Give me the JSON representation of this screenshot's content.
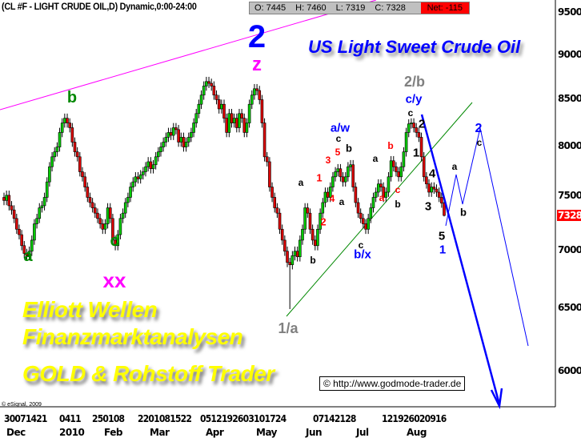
{
  "header": {
    "title": "(CL #F - LIGHT CRUDE OIL,D) Dynamic,0:00-24:00",
    "open": "O: 7445",
    "high": "H: 7460",
    "low": "L: 7319",
    "close": "C: 7328",
    "net": "Net: -115"
  },
  "headline": "US Light Sweet Crude Oil",
  "promo": {
    "line1": "Elliott Wellen",
    "line2": "Finanzmarktanalysen",
    "line3": "GOLD & Rohstoff Trader"
  },
  "copyright": "© http://www.godmode-trader.de",
  "esignal": "© eSignal, 2009",
  "colors": {
    "up": "#00cc00",
    "down": "#dd0000",
    "trend_magenta": "#ff00ff",
    "trend_green": "#008800",
    "projection": "#0000ff",
    "last_price_bg": "#ff0000"
  },
  "chart_data": {
    "type": "candlestick",
    "y_scale": "log",
    "ylim": [
      5700,
      9700
    ],
    "y_ticks": [
      "9500",
      "9000",
      "8500",
      "8000",
      "7500",
      "7000",
      "6500",
      "6000"
    ],
    "last_price": "7328",
    "x_tick_groups": [
      "30071421",
      "0411",
      "250108",
      "2201081522",
      "0512192603101724",
      "07142128",
      "121926020916"
    ],
    "x_months": [
      "Dec",
      "2010",
      "Feb",
      "Mar",
      "Apr",
      "May",
      "Jun",
      "Jul",
      "Aug"
    ],
    "last_bar": {
      "open": 7445,
      "high": 7460,
      "low": 7319,
      "close": 7328
    },
    "closes": [
      7470,
      7520,
      7420,
      7380,
      7300,
      7200,
      7150,
      7050,
      6980,
      6960,
      7000,
      7100,
      7250,
      7300,
      7400,
      7420,
      7500,
      7650,
      7800,
      7900,
      7950,
      8000,
      8150,
      8250,
      8300,
      8250,
      8200,
      8050,
      7950,
      7900,
      7750,
      7700,
      7600,
      7500,
      7450,
      7400,
      7350,
      7300,
      7250,
      7200,
      7250,
      7400,
      7300,
      7100,
      7050,
      7150,
      7300,
      7350,
      7450,
      7500,
      7600,
      7650,
      7700,
      7680,
      7720,
      7750,
      7800,
      7850,
      7780,
      7820,
      7900,
      7950,
      8000,
      8050,
      8100,
      8150,
      8120,
      8200,
      8180,
      8050,
      8100,
      8000,
      8050,
      8100,
      8150,
      8250,
      8350,
      8450,
      8550,
      8650,
      8700,
      8680,
      8650,
      8550,
      8500,
      8400,
      8450,
      8300,
      8150,
      8350,
      8250,
      8300,
      8200,
      8350,
      8300,
      8150,
      8250,
      8450,
      8550,
      8620,
      8600,
      8500,
      8250,
      7900,
      7850,
      7600,
      7500,
      7400,
      7350,
      7200,
      7100,
      7000,
      6900,
      6880,
      6960,
      7000,
      6950,
      7100,
      7200,
      7400,
      7350,
      7200,
      7100,
      7050,
      7200,
      7350,
      7450,
      7550,
      7500,
      7600,
      7700,
      7750,
      7780,
      7700,
      7650,
      7700,
      7800,
      7820,
      7600,
      7450,
      7350,
      7300,
      7250,
      7200,
      7300,
      7400,
      7500,
      7550,
      7630,
      7600,
      7500,
      7550,
      7700,
      7860,
      7800,
      7750,
      7700,
      7800,
      7950,
      8150,
      8240,
      8250,
      8200,
      8150,
      8100,
      7900,
      7700,
      7630,
      7550,
      7600,
      7580,
      7550,
      7500,
      7445,
      7328
    ],
    "annotations": [
      {
        "text": "2",
        "color": "#0000ff"
      },
      {
        "text": "z",
        "color": "#ff00ff"
      },
      {
        "text": "b",
        "color": "#008800"
      },
      {
        "text": "a",
        "color": "#008800"
      },
      {
        "text": "c",
        "color": "#008800"
      },
      {
        "text": "xx",
        "color": "#ff00ff"
      },
      {
        "text": "2/b",
        "color": "#808080"
      },
      {
        "text": "c/y",
        "color": "#0000ff"
      },
      {
        "text": "1/a",
        "color": "#808080"
      },
      {
        "text": "b/x",
        "color": "#0000ff"
      },
      {
        "text": "a/w",
        "color": "#0000ff"
      },
      {
        "text": "c",
        "color": "#000000"
      },
      {
        "text": "b",
        "color": "#000000"
      },
      {
        "text": "3",
        "color": "#ff0000"
      },
      {
        "text": "5",
        "color": "#ff0000"
      },
      {
        "text": "1",
        "color": "#ff0000"
      },
      {
        "text": "a",
        "color": "#000000"
      },
      {
        "text": "4",
        "color": "#ff0000"
      },
      {
        "text": "a",
        "color": "#000000"
      },
      {
        "text": "2",
        "color": "#ff0000"
      },
      {
        "text": "b",
        "color": "#000000"
      },
      {
        "text": "c",
        "color": "#000000"
      },
      {
        "text": "a",
        "color": "#000000"
      },
      {
        "text": "b",
        "color": "#ff0000"
      },
      {
        "text": "a",
        "color": "#ff0000"
      },
      {
        "text": "c",
        "color": "#ff0000"
      },
      {
        "text": "b",
        "color": "#000000"
      },
      {
        "text": "c",
        "color": "#000000"
      },
      {
        "text": "2",
        "color": "#000000"
      },
      {
        "text": "1",
        "color": "#000000"
      },
      {
        "text": "4",
        "color": "#000000"
      },
      {
        "text": "3",
        "color": "#000000"
      },
      {
        "text": "5",
        "color": "#000000"
      },
      {
        "text": "1",
        "color": "#0000ff"
      },
      {
        "text": "a",
        "color": "#000000"
      },
      {
        "text": "b",
        "color": "#000000"
      },
      {
        "text": "2",
        "color": "#0000ff"
      },
      {
        "text": "c",
        "color": "#000000"
      }
    ]
  }
}
